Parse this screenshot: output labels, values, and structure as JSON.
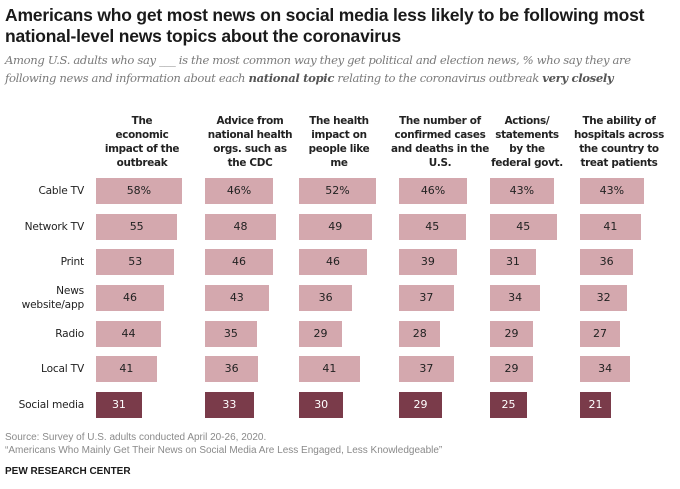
{
  "title": "Americans who get most news on social media less likely to be following most national-level news topics about the coronavirus",
  "subtitle_parts": {
    "p1": "Among U.S. adults who say ___ is the most common way they get political and election news, % who say they are following news and information about each ",
    "bold1": "national topic",
    "p2": " relating to the coronavirus outbreak ",
    "bold2": "very closely"
  },
  "colors": {
    "light_bar": "#d4a8ae",
    "dark_bar": "#7a3b4a"
  },
  "chart_data": {
    "type": "bar",
    "title": "Americans who get most news on social media less likely to be following most national-level news topics about the coronavirus",
    "xlabel": "",
    "ylabel": "",
    "unit": "%",
    "categories": [
      "Cable TV",
      "Network TV",
      "Print",
      "News website/app",
      "Radio",
      "Local TV",
      "Social media"
    ],
    "category_labels": [
      [
        "Cable TV"
      ],
      [
        "Network TV"
      ],
      [
        "Print"
      ],
      [
        "News",
        "website/app"
      ],
      [
        "Radio"
      ],
      [
        "Local TV"
      ],
      [
        "Social media"
      ]
    ],
    "highlight_category": "Social media",
    "series": [
      {
        "name": "The economic impact of the outbreak",
        "header_lines": [
          "The",
          "economic",
          "impact of the",
          "outbreak"
        ],
        "values": [
          58,
          55,
          53,
          46,
          44,
          41,
          31
        ]
      },
      {
        "name": "Advice from national health orgs. such as the CDC",
        "header_lines": [
          "Advice from",
          "national health",
          "orgs. such as",
          "the CDC"
        ],
        "values": [
          46,
          48,
          46,
          43,
          35,
          36,
          33
        ]
      },
      {
        "name": "The health impact on people like me",
        "header_lines": [
          "The health",
          "impact on",
          "people like",
          "me"
        ],
        "values": [
          52,
          49,
          46,
          36,
          29,
          41,
          30
        ]
      },
      {
        "name": "The number of confirmed cases and deaths in the U.S.",
        "header_lines": [
          "The number of",
          "confirmed cases",
          "and deaths in the",
          "U.S."
        ],
        "values": [
          46,
          45,
          39,
          37,
          28,
          37,
          29
        ]
      },
      {
        "name": "Actions/statements by the federal govt.",
        "header_lines": [
          "Actions/",
          "statements",
          "by the",
          "federal govt."
        ],
        "values": [
          43,
          45,
          31,
          34,
          29,
          29,
          25
        ]
      },
      {
        "name": "The ability of hospitals across the country to treat patients",
        "header_lines": [
          "The ability of",
          "hospitals across",
          "the country to",
          "treat patients"
        ],
        "values": [
          43,
          41,
          36,
          32,
          27,
          34,
          21
        ]
      }
    ],
    "first_row_percent_sign": true,
    "xlim": [
      0,
      100
    ],
    "grid": false,
    "legend": "none"
  },
  "footer": {
    "source": "Source: Survey of U.S. adults conducted April 20-26, 2020.",
    "report": "“Americans Who Mainly Get Their News on Social Media Are Less Engaged, Less Knowledgeable”",
    "brand": "PEW RESEARCH CENTER"
  }
}
